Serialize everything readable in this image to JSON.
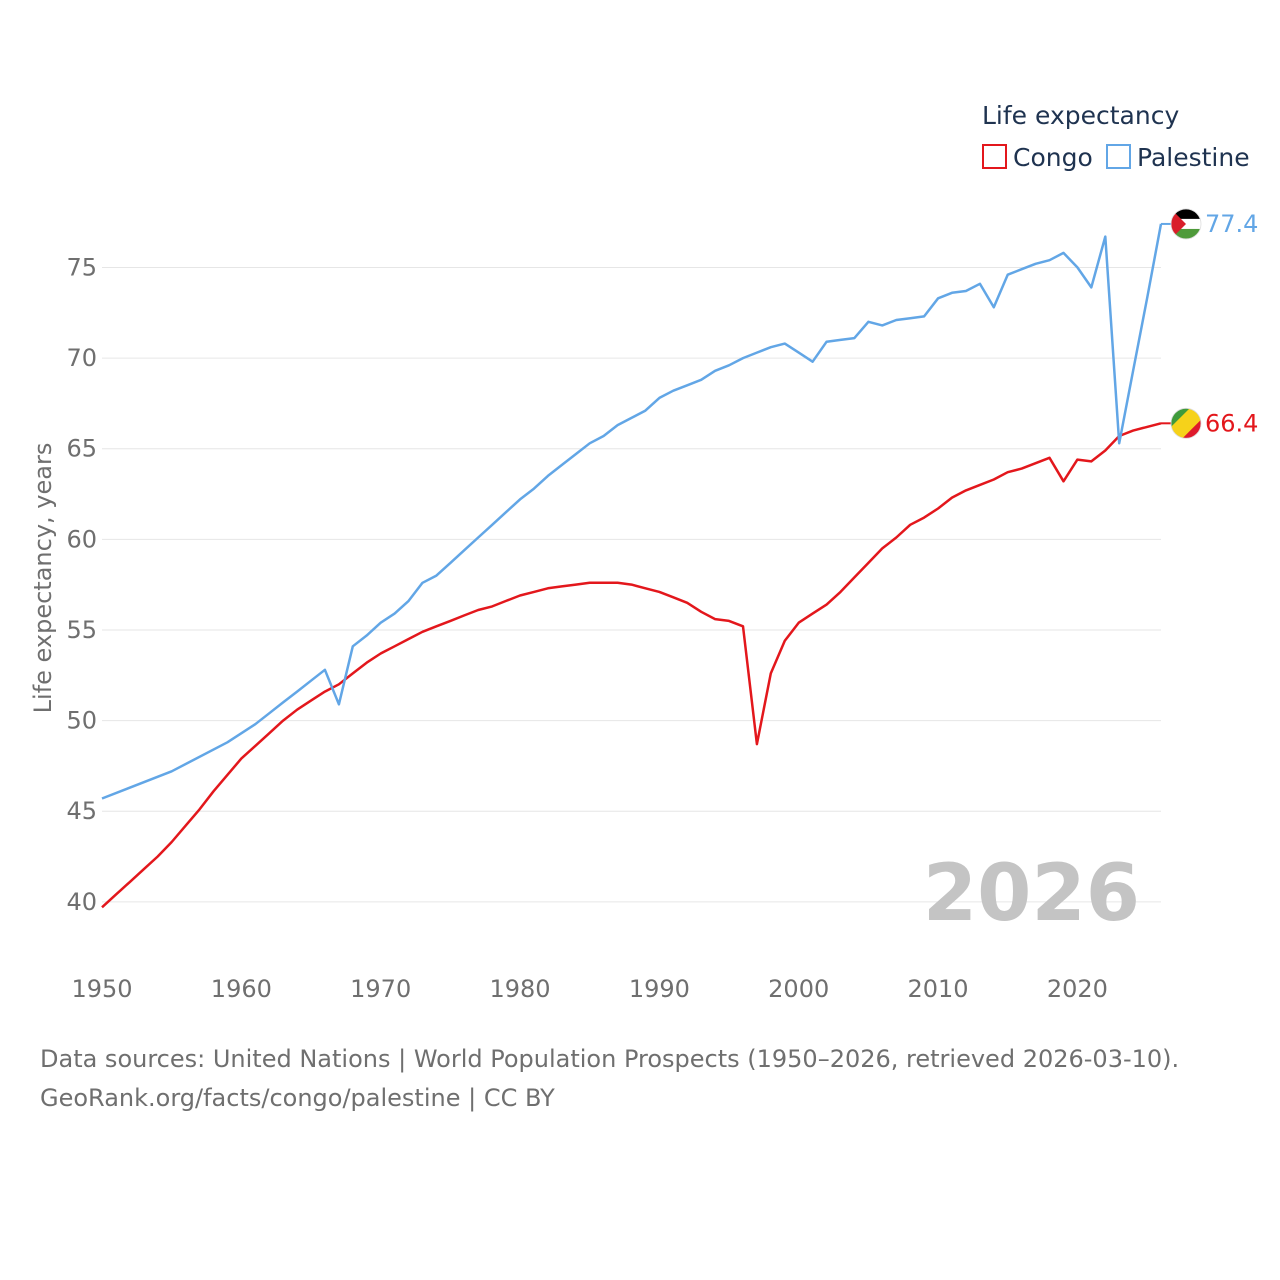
{
  "chart_data": {
    "type": "line",
    "title": "",
    "xlabel": "",
    "ylabel": "Life expectancy, years",
    "xlim": [
      1950,
      2026
    ],
    "ylim": [
      38.5,
      78.5
    ],
    "x_ticks": [
      1950,
      1960,
      1970,
      1980,
      1990,
      2000,
      2010,
      2020
    ],
    "y_ticks": [
      40,
      45,
      50,
      55,
      60,
      65,
      70,
      75
    ],
    "grid": "horizontal",
    "year_label": "2026",
    "legend": {
      "title": "Life expectancy",
      "placement": "top-right",
      "items": [
        {
          "name": "Congo",
          "color": "#e3171c"
        },
        {
          "name": "Palestine",
          "color": "#62a6e6"
        }
      ]
    },
    "series": [
      {
        "name": "Congo",
        "color": "#e3171c",
        "end_label": "66.4",
        "flag": "congo-flag",
        "points": [
          [
            1950,
            39.7
          ],
          [
            1951,
            40.4
          ],
          [
            1952,
            41.1
          ],
          [
            1953,
            41.8
          ],
          [
            1954,
            42.5
          ],
          [
            1955,
            43.3
          ],
          [
            1956,
            44.2
          ],
          [
            1957,
            45.1
          ],
          [
            1958,
            46.1
          ],
          [
            1959,
            47.0
          ],
          [
            1960,
            47.9
          ],
          [
            1961,
            48.6
          ],
          [
            1962,
            49.3
          ],
          [
            1963,
            50.0
          ],
          [
            1964,
            50.6
          ],
          [
            1965,
            51.1
          ],
          [
            1966,
            51.6
          ],
          [
            1967,
            52.0
          ],
          [
            1968,
            52.6
          ],
          [
            1969,
            53.2
          ],
          [
            1970,
            53.7
          ],
          [
            1971,
            54.1
          ],
          [
            1972,
            54.5
          ],
          [
            1973,
            54.9
          ],
          [
            1974,
            55.2
          ],
          [
            1975,
            55.5
          ],
          [
            1976,
            55.8
          ],
          [
            1977,
            56.1
          ],
          [
            1978,
            56.3
          ],
          [
            1979,
            56.6
          ],
          [
            1980,
            56.9
          ],
          [
            1981,
            57.1
          ],
          [
            1982,
            57.3
          ],
          [
            1983,
            57.4
          ],
          [
            1984,
            57.5
          ],
          [
            1985,
            57.6
          ],
          [
            1986,
            57.6
          ],
          [
            1987,
            57.6
          ],
          [
            1988,
            57.5
          ],
          [
            1989,
            57.3
          ],
          [
            1990,
            57.1
          ],
          [
            1991,
            56.8
          ],
          [
            1992,
            56.5
          ],
          [
            1993,
            56.0
          ],
          [
            1994,
            55.6
          ],
          [
            1995,
            55.5
          ],
          [
            1996,
            55.2
          ],
          [
            1997,
            48.7
          ],
          [
            1998,
            52.6
          ],
          [
            1999,
            54.4
          ],
          [
            2000,
            55.4
          ],
          [
            2001,
            55.9
          ],
          [
            2002,
            56.4
          ],
          [
            2003,
            57.1
          ],
          [
            2004,
            57.9
          ],
          [
            2005,
            58.7
          ],
          [
            2006,
            59.5
          ],
          [
            2007,
            60.1
          ],
          [
            2008,
            60.8
          ],
          [
            2009,
            61.2
          ],
          [
            2010,
            61.7
          ],
          [
            2011,
            62.3
          ],
          [
            2012,
            62.7
          ],
          [
            2013,
            63.0
          ],
          [
            2014,
            63.3
          ],
          [
            2015,
            63.7
          ],
          [
            2016,
            63.9
          ],
          [
            2017,
            64.2
          ],
          [
            2018,
            64.5
          ],
          [
            2019,
            63.2
          ],
          [
            2020,
            64.4
          ],
          [
            2021,
            64.3
          ],
          [
            2022,
            64.9
          ],
          [
            2023,
            65.7
          ],
          [
            2024,
            66.0
          ],
          [
            2025,
            66.2
          ],
          [
            2026,
            66.4
          ]
        ]
      },
      {
        "name": "Palestine",
        "color": "#62a6e6",
        "end_label": "77.4",
        "flag": "palestine-flag",
        "points": [
          [
            1950,
            45.7
          ],
          [
            1955,
            47.2
          ],
          [
            1959,
            48.8
          ],
          [
            1961,
            49.8
          ],
          [
            1962,
            50.4
          ],
          [
            1963,
            51.0
          ],
          [
            1964,
            51.6
          ],
          [
            1965,
            52.2
          ],
          [
            1966,
            52.8
          ],
          [
            1967,
            50.9
          ],
          [
            1968,
            54.1
          ],
          [
            1969,
            54.7
          ],
          [
            1970,
            55.4
          ],
          [
            1971,
            55.9
          ],
          [
            1972,
            56.6
          ],
          [
            1973,
            57.6
          ],
          [
            1974,
            58.0
          ],
          [
            1975,
            58.7
          ],
          [
            1976,
            59.4
          ],
          [
            1977,
            60.1
          ],
          [
            1978,
            60.8
          ],
          [
            1979,
            61.5
          ],
          [
            1980,
            62.2
          ],
          [
            1981,
            62.8
          ],
          [
            1982,
            63.5
          ],
          [
            1983,
            64.1
          ],
          [
            1984,
            64.7
          ],
          [
            1985,
            65.3
          ],
          [
            1986,
            65.7
          ],
          [
            1987,
            66.3
          ],
          [
            1988,
            66.7
          ],
          [
            1989,
            67.1
          ],
          [
            1990,
            67.8
          ],
          [
            1991,
            68.2
          ],
          [
            1992,
            68.5
          ],
          [
            1993,
            68.8
          ],
          [
            1994,
            69.3
          ],
          [
            1995,
            69.6
          ],
          [
            1996,
            70.0
          ],
          [
            1997,
            70.3
          ],
          [
            1998,
            70.6
          ],
          [
            1999,
            70.8
          ],
          [
            2000,
            70.3
          ],
          [
            2001,
            69.8
          ],
          [
            2002,
            70.9
          ],
          [
            2003,
            71.0
          ],
          [
            2004,
            71.1
          ],
          [
            2005,
            72.0
          ],
          [
            2006,
            71.8
          ],
          [
            2007,
            72.1
          ],
          [
            2008,
            72.2
          ],
          [
            2009,
            72.3
          ],
          [
            2010,
            73.3
          ],
          [
            2011,
            73.6
          ],
          [
            2012,
            73.7
          ],
          [
            2013,
            74.1
          ],
          [
            2014,
            72.8
          ],
          [
            2015,
            74.6
          ],
          [
            2016,
            74.9
          ],
          [
            2017,
            75.2
          ],
          [
            2018,
            75.4
          ],
          [
            2019,
            75.8
          ],
          [
            2020,
            75.0
          ],
          [
            2021,
            73.9
          ],
          [
            2022,
            76.7
          ],
          [
            2023,
            65.3
          ],
          [
            2024,
            69.3
          ],
          [
            2025,
            73.3
          ],
          [
            2026,
            77.4
          ]
        ]
      }
    ]
  },
  "source": {
    "line1": "Data sources: United Nations | World Population Prospects (1950–2026, retrieved 2026-03-10).",
    "line2": "GeoRank.org/facts/congo/palestine | CC BY"
  }
}
